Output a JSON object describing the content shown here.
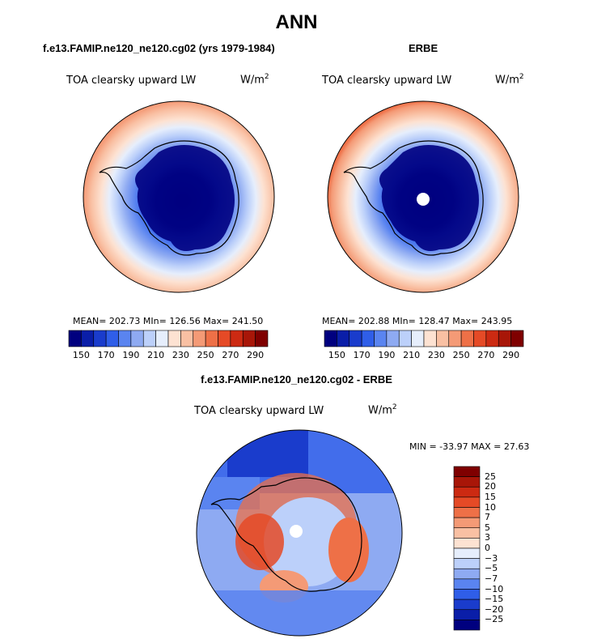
{
  "figure": {
    "season": "ANN"
  },
  "panels": [
    {
      "title": "f.e13.FAMIP.ne120_ne120.cg02 (yrs 1979-1984)",
      "variable": "TOA clearsky upward LW",
      "units_base": "W/m",
      "units_exp": "2",
      "stats": {
        "mean": "202.73",
        "min": "126.56",
        "max": "241.50"
      },
      "stats_text": "MEAN= 202.73  MIn= 126.56  Max= 241.50",
      "has_pole_hole": false
    },
    {
      "title": "ERBE",
      "variable": "TOA clearsky upward LW",
      "units_base": "W/m",
      "units_exp": "2",
      "stats": {
        "mean": "202.88",
        "min": "128.47",
        "max": "243.95"
      },
      "stats_text": "MEAN= 202.88  MIn= 128.47  Max= 243.95",
      "has_pole_hole": true
    },
    {
      "title": "f.e13.FAMIP.ne120_ne120.cg02 - ERBE",
      "variable": "TOA clearsky upward LW",
      "units_base": "W/m",
      "units_exp": "2",
      "stats_text": "MIN = -33.97 MAX =  27.63",
      "has_pole_hole": true
    }
  ],
  "colorbar_abs": {
    "colors": [
      "#00007f",
      "#0a1ea8",
      "#1a3ccc",
      "#2f5ee8",
      "#5a84f0",
      "#8eaaf2",
      "#bcd0fa",
      "#e6eefc",
      "#fde2d2",
      "#f9c0a3",
      "#f49a76",
      "#ee7047",
      "#e54a26",
      "#cc2a12",
      "#a81608",
      "#7f0000"
    ],
    "tick_labels": [
      "150",
      "170",
      "190",
      "210",
      "230",
      "250",
      "270",
      "290"
    ]
  },
  "colorbar_diff": {
    "colors": [
      "#00007f",
      "#0a1ea8",
      "#1a3ccc",
      "#2f5ee8",
      "#5a84f0",
      "#8eaaf2",
      "#bcd0fa",
      "#e6eefc",
      "#fde2d2",
      "#f9c0a3",
      "#f49a76",
      "#ee7047",
      "#e54a26",
      "#cc2a12",
      "#a81608",
      "#7f0000"
    ],
    "tick_labels": [
      "25",
      "20",
      "15",
      "10",
      "7",
      "5",
      "3",
      "0",
      "-3",
      "-5",
      "-7",
      "-10",
      "-15",
      "-20",
      "-25"
    ]
  },
  "colors": {
    "land_outline": "#000000",
    "frame": "#000000"
  }
}
